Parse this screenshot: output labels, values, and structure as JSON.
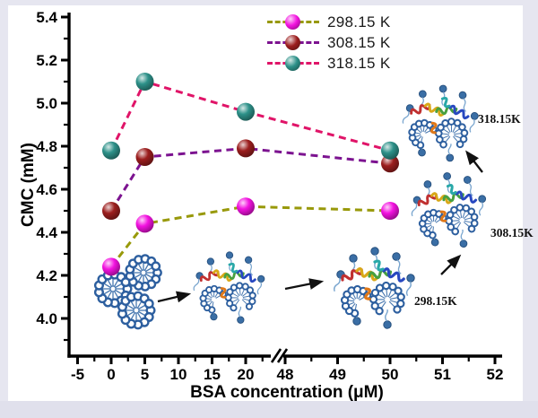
{
  "figure": {
    "bg_color": "#e6e6f0",
    "plot_bg_color": "#ffffff",
    "axis_color": "#000000"
  },
  "chart_data": {
    "type": "line",
    "title": "",
    "xlabel": "BSA concentration (μM)",
    "ylabel": "CMC (mM)",
    "x": [
      0,
      5,
      20,
      50
    ],
    "series": [
      {
        "name": "298.15 K",
        "values": [
          4.24,
          4.44,
          4.52,
          4.5
        ],
        "marker_color": "#f312e0",
        "line_color": "#98990a"
      },
      {
        "name": "308.15 K",
        "values": [
          4.5,
          4.75,
          4.79,
          4.72
        ],
        "marker_color": "#9c1e1e",
        "line_color": "#7c1390"
      },
      {
        "name": "318.15 K",
        "values": [
          4.78,
          5.1,
          4.96,
          4.78
        ],
        "marker_color": "#2d9189",
        "line_color": "#e01468"
      }
    ],
    "ylim": [
      3.85,
      5.42
    ],
    "y_ticks": [
      "4.0",
      "4.2",
      "4.4",
      "4.6",
      "4.8",
      "5.0",
      "5.2",
      "5.4"
    ],
    "y_minor_ticks": [
      3.9,
      4.1,
      4.3,
      4.5,
      4.7,
      4.9,
      5.1,
      5.3
    ],
    "x_ticks_left": [
      "-5",
      "0",
      "5",
      "10",
      "15",
      "20"
    ],
    "x_minor_ticks_left": [
      -2.5,
      2.5,
      7.5,
      12.5,
      17.5,
      22.5
    ],
    "x_ticks_right": [
      "48",
      "49",
      "50",
      "51",
      "52"
    ],
    "x_minor_ticks_right": [
      48.5,
      49.5,
      50.5,
      51.5
    ],
    "x_axis_break": "//",
    "grid": false,
    "legend_position": "top-center",
    "line_style": "dashed",
    "marker": "sphere"
  },
  "annotations": [
    {
      "text": "298.15K"
    },
    {
      "text": "308.15K"
    },
    {
      "text": "318.15K"
    }
  ],
  "illustrations": [
    {
      "name": "micelle-cluster"
    },
    {
      "name": "bsa-micelle-complex"
    },
    {
      "name": "bsa-micelle-complex-298K"
    },
    {
      "name": "bsa-micelle-complex-308K"
    },
    {
      "name": "bsa-micelle-complex-318K"
    }
  ]
}
